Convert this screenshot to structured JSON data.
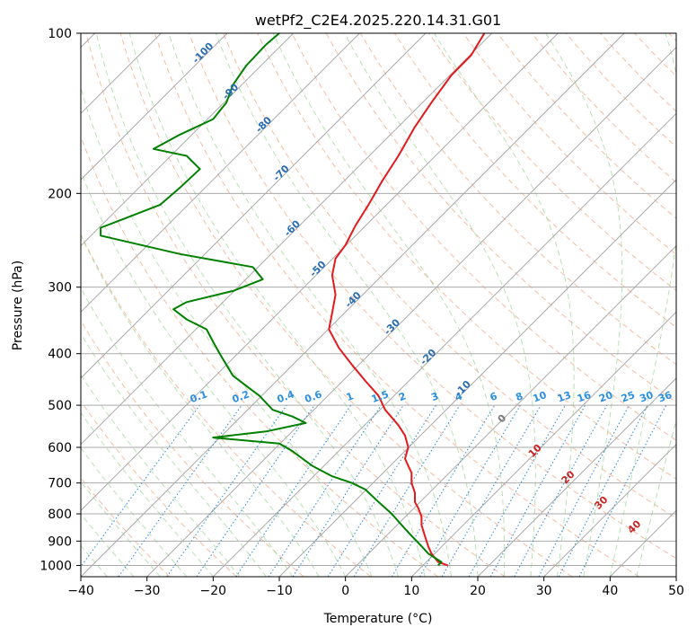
{
  "chart_data": {
    "type": "skew-t",
    "title": "wetPf2_C2E4.2025.220.14.31.G01",
    "xlabel": "Temperature (°C)",
    "ylabel": "Pressure (hPa)",
    "xlim": [
      -40,
      50
    ],
    "ylim": [
      1050,
      100
    ],
    "y_scale": "log",
    "grid": true,
    "x_ticks": [
      -40,
      -30,
      -20,
      -10,
      0,
      10,
      20,
      30,
      40,
      50
    ],
    "y_ticks": [
      100,
      200,
      300,
      400,
      500,
      600,
      700,
      800,
      900,
      1000
    ],
    "colors": {
      "temperature": "#e31a1c",
      "dewpoint": "#008000",
      "isotherm": "#aaaaaa",
      "dry_adiabat": "#f4a582",
      "moist_adiabat": "#a6d9a0",
      "mixing_ratio": "#3a8fd9",
      "isotherm_label": "#2a6db5",
      "mixing_label": "#2a8fe0",
      "adiabat_label": "#cc2222"
    },
    "series": [
      {
        "key": "temperature",
        "points": [
          [
            15.5,
            1000
          ],
          [
            14,
            985
          ],
          [
            13,
            950
          ],
          [
            12.5,
            920
          ],
          [
            12,
            880
          ],
          [
            11.5,
            840
          ],
          [
            11.5,
            810
          ],
          [
            11,
            780
          ],
          [
            10.5,
            760
          ],
          [
            10.5,
            730
          ],
          [
            10,
            700
          ],
          [
            10,
            670
          ],
          [
            9.5,
            650
          ],
          [
            9,
            630
          ],
          [
            9.5,
            600
          ],
          [
            9,
            570
          ],
          [
            8,
            545
          ],
          [
            6,
            510
          ],
          [
            5,
            480
          ],
          [
            3,
            450
          ],
          [
            1,
            420
          ],
          [
            -1,
            390
          ],
          [
            -2.5,
            360
          ],
          [
            -2,
            335
          ],
          [
            -1.5,
            310
          ],
          [
            -2,
            285
          ],
          [
            -1.5,
            265
          ],
          [
            0,
            250
          ],
          [
            1.5,
            230
          ],
          [
            3.5,
            210
          ],
          [
            5.5,
            190
          ],
          [
            8,
            170
          ],
          [
            10.5,
            150
          ],
          [
            13,
            135
          ],
          [
            16,
            120
          ],
          [
            19,
            110
          ],
          [
            21,
            100
          ]
        ]
      },
      {
        "key": "dewpoint",
        "points": [
          [
            14,
            1000
          ],
          [
            14.5,
            985
          ],
          [
            12.5,
            950
          ],
          [
            11.5,
            920
          ],
          [
            10,
            880
          ],
          [
            8.5,
            840
          ],
          [
            7,
            800
          ],
          [
            5,
            760
          ],
          [
            3,
            720
          ],
          [
            1,
            700
          ],
          [
            -2,
            680
          ],
          [
            -5,
            650
          ],
          [
            -8,
            610
          ],
          [
            -10,
            590
          ],
          [
            -20,
            575
          ],
          [
            -12,
            560
          ],
          [
            -6,
            540
          ],
          [
            -8,
            525
          ],
          [
            -11,
            510
          ],
          [
            -13,
            480
          ],
          [
            -15,
            460
          ],
          [
            -17,
            440
          ],
          [
            -18,
            420
          ],
          [
            -19,
            400
          ],
          [
            -20,
            380
          ],
          [
            -21,
            360
          ],
          [
            -24,
            345
          ],
          [
            -26,
            330
          ],
          [
            -24,
            320
          ],
          [
            -17,
            305
          ],
          [
            -12.5,
            290
          ],
          [
            -14,
            275
          ],
          [
            -25,
            260
          ],
          [
            -37,
            240
          ],
          [
            -37,
            232
          ],
          [
            -33,
            222
          ],
          [
            -28,
            210
          ],
          [
            -25,
            195
          ],
          [
            -22,
            180
          ],
          [
            -24,
            170
          ],
          [
            -29,
            165
          ],
          [
            -25,
            155
          ],
          [
            -20,
            145
          ],
          [
            -18,
            135
          ],
          [
            -17,
            125
          ],
          [
            -15,
            115
          ],
          [
            -12,
            105
          ],
          [
            -10,
            100
          ]
        ]
      }
    ],
    "isotherm_labels": [
      "-100",
      "-90",
      "-80",
      "-70",
      "-60",
      "-50",
      "-40",
      "-30",
      "-20",
      "-10"
    ],
    "mixing_ratio_labels": [
      "0.1",
      "0.2",
      "0.4",
      "0.6",
      "1",
      "1.5",
      "2",
      "3",
      "4",
      "6",
      "8",
      "10",
      "13",
      "16",
      "20",
      "25",
      "30",
      "36"
    ],
    "dry_adiabat_labels": [
      "0",
      "10",
      "20",
      "30",
      "40"
    ]
  }
}
